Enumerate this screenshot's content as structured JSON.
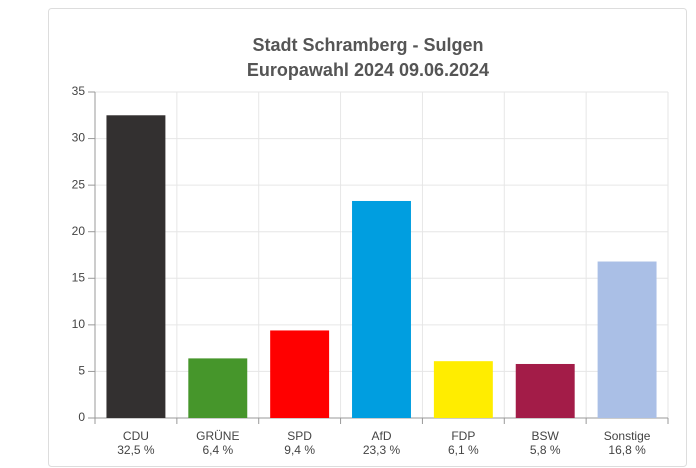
{
  "chart_data": {
    "type": "bar",
    "title": "Stadt Schramberg - Sulgen",
    "subtitle": "Europawahl 2024 09.06.2024",
    "categories": [
      "CDU",
      "GRÜNE",
      "SPD",
      "AfD",
      "FDP",
      "BSW",
      "Sonstige"
    ],
    "values": [
      32.5,
      6.4,
      9.4,
      23.3,
      6.1,
      5.8,
      16.8
    ],
    "value_labels": [
      "32,5 %",
      "6,4 %",
      "9,4 %",
      "23,3 %",
      "6,1 %",
      "5,8 %",
      "16,8 %"
    ],
    "colors": [
      "#333030",
      "#46962b",
      "#ff0000",
      "#009ee0",
      "#ffed00",
      "#a31c48",
      "#aabfe6"
    ],
    "ylim": [
      0,
      35
    ],
    "yticks": [
      0,
      5,
      10,
      15,
      20,
      25,
      30,
      35
    ],
    "grid": true
  }
}
